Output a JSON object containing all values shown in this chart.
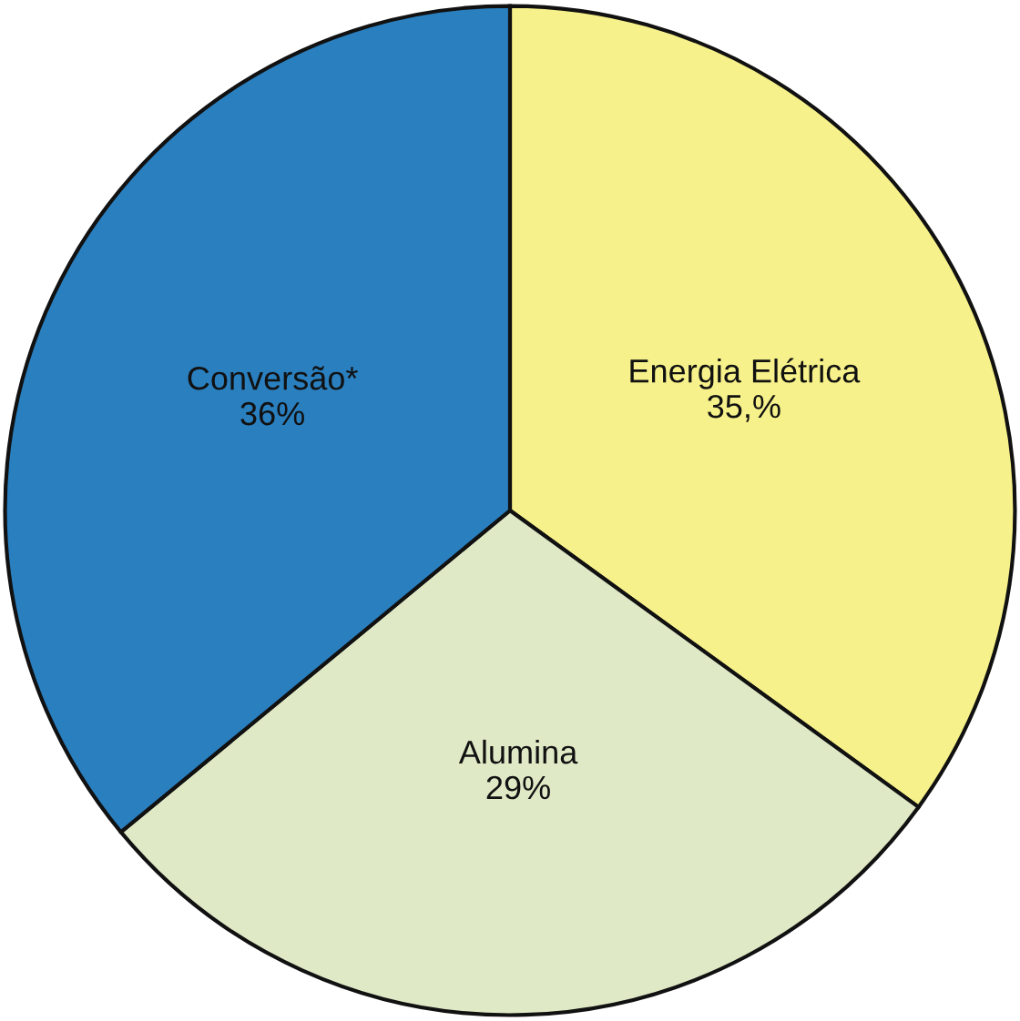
{
  "chart_data": {
    "type": "pie",
    "categories": [
      "Energia Elétrica",
      "Alumina",
      "Conversão*"
    ],
    "values": [
      35,
      29,
      36
    ],
    "value_labels": [
      "35,%",
      "29%",
      "36%"
    ],
    "colors": [
      "#f6f18a",
      "#dfe9c6",
      "#2a7fbf"
    ]
  }
}
